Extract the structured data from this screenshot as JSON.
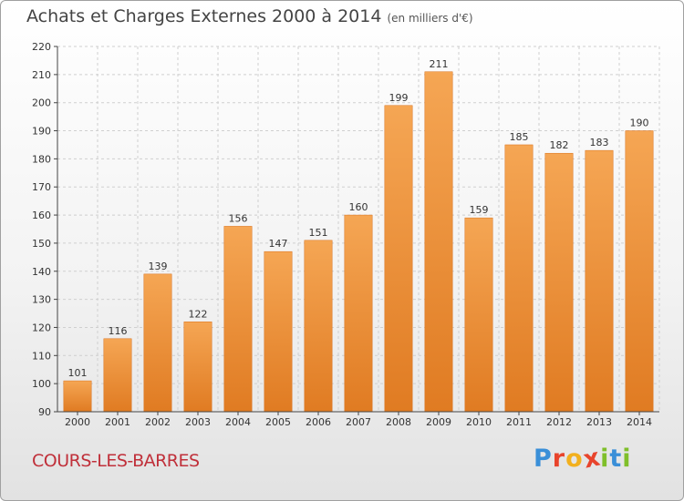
{
  "header": {
    "title": "Achats et Charges Externes 2000 à 2014",
    "unit": "(en milliers d'€)"
  },
  "footer": {
    "town": "COURS-LES-BARRES",
    "brand": "Proxiti",
    "brand_letters": [
      {
        "ch": "P",
        "color": "#3a8fd8"
      },
      {
        "ch": "r",
        "color": "#e8442c"
      },
      {
        "ch": "o",
        "color": "#f2b01e"
      },
      {
        "ch": "x",
        "color": "#e8442c"
      },
      {
        "ch": "i",
        "color": "#7fbf2a"
      },
      {
        "ch": "t",
        "color": "#3a8fd8"
      },
      {
        "ch": "i",
        "color": "#7fbf2a"
      }
    ]
  },
  "colors": {
    "bar_top": "#f5a654",
    "bar_bottom": "#e07b22",
    "grid": "#cfcfcf"
  },
  "chart_data": {
    "type": "bar",
    "title": "Achats et Charges Externes 2000 à 2014",
    "subtitle": "(en milliers d'€)",
    "categories": [
      "2000",
      "2001",
      "2002",
      "2003",
      "2004",
      "2005",
      "2006",
      "2007",
      "2008",
      "2009",
      "2010",
      "2011",
      "2012",
      "2013",
      "2014"
    ],
    "values": [
      101,
      116,
      139,
      122,
      156,
      147,
      151,
      160,
      199,
      211,
      159,
      185,
      182,
      183,
      190
    ],
    "yticks": [
      90,
      100,
      110,
      120,
      130,
      140,
      150,
      160,
      170,
      180,
      190,
      200,
      210,
      220
    ],
    "ylim": [
      90,
      220
    ],
    "grid": true,
    "xlabel": "",
    "ylabel": ""
  }
}
